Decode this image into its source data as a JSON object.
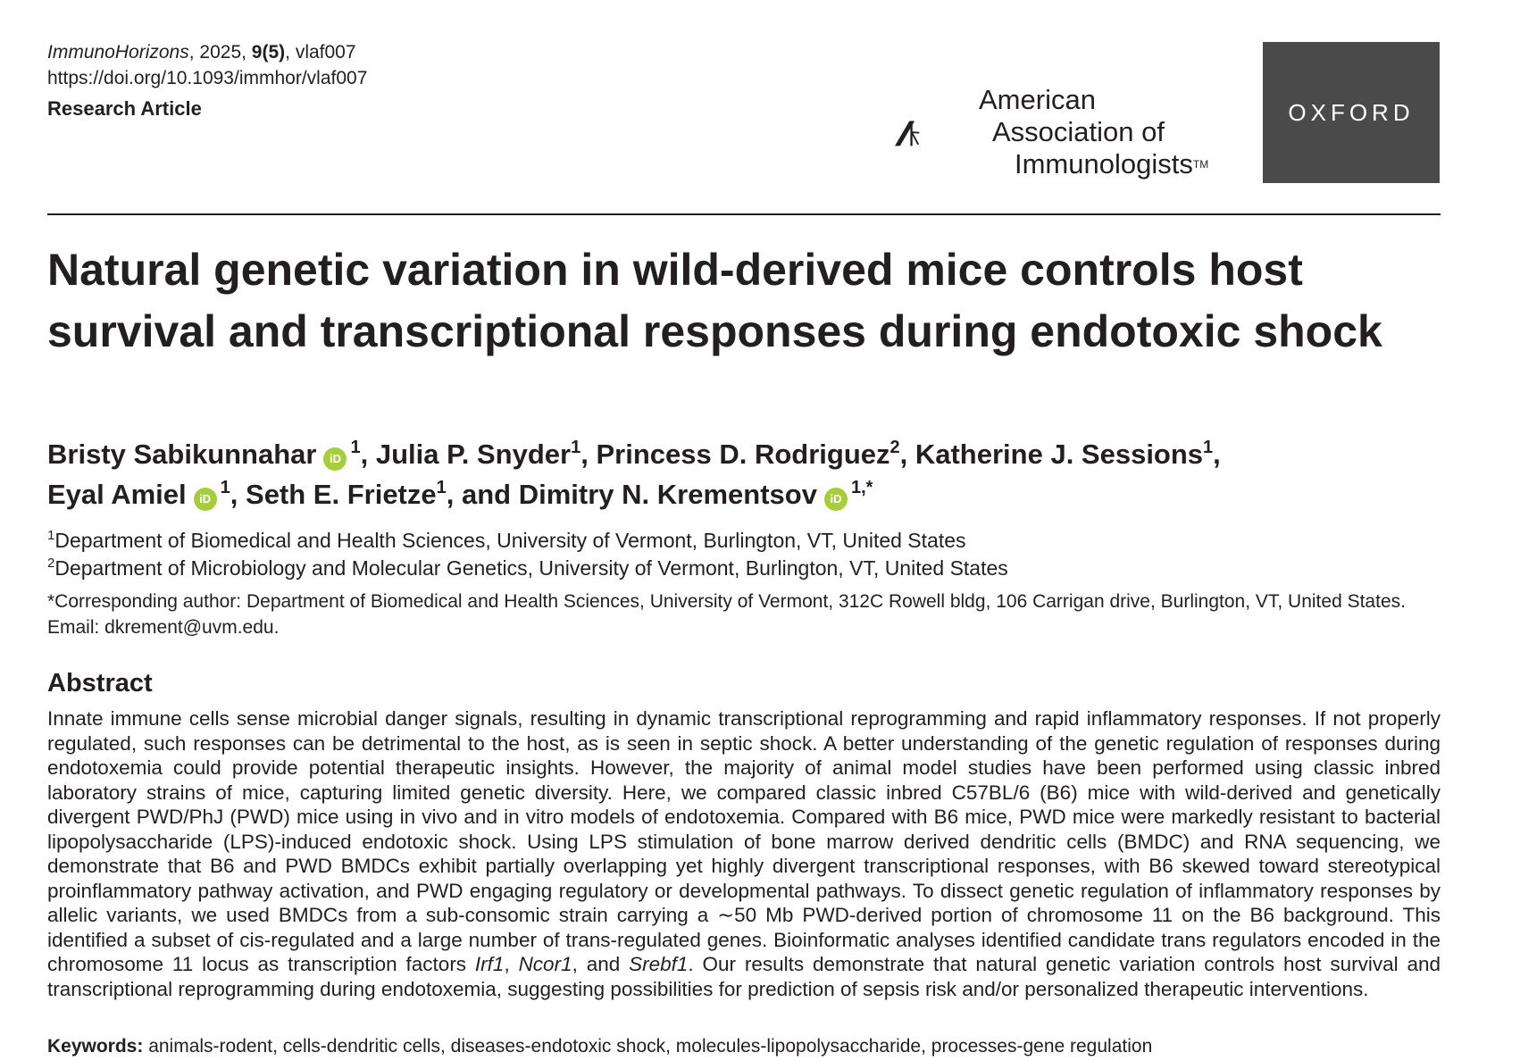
{
  "header": {
    "journal_name": "ImmunoHorizons",
    "year_sep": ", 2025, ",
    "volume_issue": "9(5)",
    "article_id": ", vlaf007",
    "doi": "https://doi.org/10.1093/immhor/vlaf007",
    "article_type": "Research Article"
  },
  "logos": {
    "aai_line1": "American",
    "aai_line2": "Association of",
    "aai_line3": "Immunologists",
    "aai_tm": "TM",
    "oxford": "OXFORD",
    "oxford_bg": "#4a4a4a",
    "orcid_color": "#a6ce39"
  },
  "title": "Natural genetic variation in wild-derived mice controls host survival and transcriptional responses during endotoxic shock",
  "authors": {
    "a1": "Bristy Sabikunnahar",
    "a1_sup": "1",
    "a2": "Julia P. Snyder",
    "a2_sup": "1",
    "a3": "Princess D. Rodriguez",
    "a3_sup": "2",
    "a4": "Katherine J. Sessions",
    "a4_sup": "1",
    "a5": "Eyal Amiel",
    "a5_sup": "1",
    "a6": "Seth E. Frietze",
    "a6_sup": "1",
    "a7": "Dimitry N. Krementsov",
    "a7_sup": "1,*",
    "and": "and",
    "orcid_label": "iD"
  },
  "affiliations": [
    {
      "num": "1",
      "text": "Department of Biomedical and Health Sciences, University of Vermont, Burlington, VT, United States"
    },
    {
      "num": "2",
      "text": "Department of Microbiology and Molecular Genetics, University of Vermont, Burlington, VT, United States"
    }
  ],
  "corresponding": "*Corresponding author: Department of Biomedical and Health Sciences, University of Vermont, 312C Rowell bldg, 106 Carrigan drive, Burlington, VT, United States. Email: dkrement@uvm.edu.",
  "abstract": {
    "heading": "Abstract",
    "part1": "Innate immune cells sense microbial danger signals, resulting in dynamic transcriptional reprogramming and rapid inflammatory responses. If not properly regulated, such responses can be detrimental to the host, as is seen in septic shock. A better understanding of the genetic regulation of responses during endotoxemia could provide potential therapeutic insights. However, the majority of animal model studies have been performed using classic inbred laboratory strains of mice, capturing limited genetic diversity. Here, we compared classic inbred C57BL/6 (B6) mice with wild-derived and genetically divergent PWD/PhJ (PWD) mice using in vivo and in vitro models of endotoxemia. Compared with B6 mice, PWD mice were markedly resistant to bacterial lipopolysaccharide (LPS)-induced endotoxic shock. Using LPS stimulation of bone marrow derived dendritic cells (BMDC) and RNA sequencing, we demonstrate that B6 and PWD BMDCs exhibit partially overlapping yet highly divergent transcriptional responses, with B6 skewed toward stereotypical proinflammatory pathway activation, and PWD engaging regulatory or developmental pathways. To dissect genetic regulation of inflammatory responses by allelic variants, we used BMDCs from a sub-consomic strain carrying a ∼50 Mb PWD-derived portion of chromosome 11 on the B6 background. This identified a subset of cis-regulated and a large number of trans-regulated genes. Bioinformatic analyses identified candidate trans regulators encoded in the chromosome 11 locus as transcription factors ",
    "gene1": "Irf1",
    "sep1": ", ",
    "gene2": "Ncor1",
    "sep2": ", and ",
    "gene3": "Srebf1",
    "part2": ". Our results demonstrate that natural genetic variation controls host survival and transcriptional reprogramming during endotoxemia, suggesting possibilities for prediction of sepsis risk and/or personalized therapeutic interventions."
  },
  "keywords": {
    "label": "Keywords:",
    "text": " animals-rodent, cells-dendritic cells, diseases-endotoxic shock, molecules-lipopolysaccharide, processes-gene regulation"
  }
}
